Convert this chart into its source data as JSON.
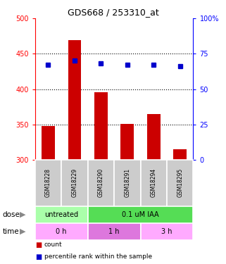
{
  "title": "GDS668 / 253310_at",
  "samples": [
    "GSM18228",
    "GSM18229",
    "GSM18290",
    "GSM18291",
    "GSM18294",
    "GSM18295"
  ],
  "bar_values": [
    348,
    469,
    396,
    351,
    365,
    315
  ],
  "bar_base": 300,
  "percentile_right": [
    67,
    70,
    68,
    67,
    67,
    66
  ],
  "ylim_left": [
    300,
    500
  ],
  "ylim_right": [
    0,
    100
  ],
  "yticks_left": [
    300,
    350,
    400,
    450,
    500
  ],
  "yticks_right": [
    0,
    25,
    50,
    75,
    100
  ],
  "bar_color": "#cc0000",
  "percentile_color": "#0000cc",
  "sample_bg_color": "#cccccc",
  "dose_labels": [
    {
      "label": "untreated",
      "start": 0,
      "end": 2,
      "color": "#aaffaa"
    },
    {
      "label": "0.1 uM IAA",
      "start": 2,
      "end": 6,
      "color": "#55dd55"
    }
  ],
  "time_labels": [
    {
      "label": "0 h",
      "start": 0,
      "end": 2,
      "color": "#ffaaff"
    },
    {
      "label": "1 h",
      "start": 2,
      "end": 4,
      "color": "#dd77dd"
    },
    {
      "label": "3 h",
      "start": 4,
      "end": 6,
      "color": "#ffaaff"
    }
  ],
  "legend_items": [
    {
      "label": "count",
      "color": "#cc0000"
    },
    {
      "label": "percentile rank within the sample",
      "color": "#0000cc"
    }
  ]
}
